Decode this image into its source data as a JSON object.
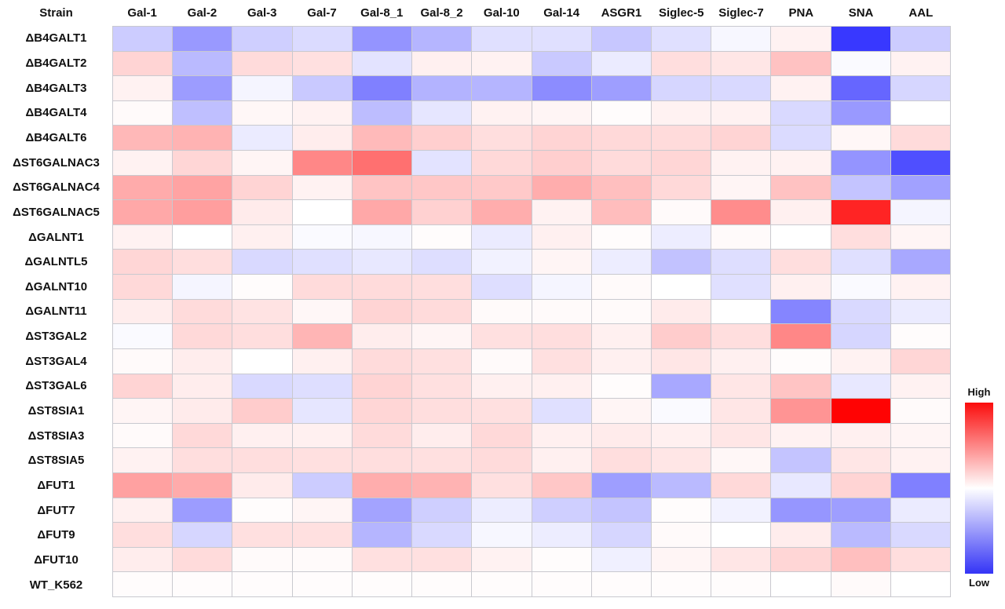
{
  "figure": {
    "strain_header": "Strain"
  },
  "chart_data": {
    "type": "heatmap",
    "title": "",
    "columns": [
      "Gal-1",
      "Gal-2",
      "Gal-3",
      "Gal-7",
      "Gal-8_1",
      "Gal-8_2",
      "Gal-10",
      "Gal-14",
      "ASGR1",
      "Siglec-5",
      "Siglec-7",
      "PNA",
      "SNA",
      "AAL"
    ],
    "rows": [
      "ΔB4GALT1",
      "ΔB4GALT2",
      "ΔB4GALT3",
      "ΔB4GALT4",
      "ΔB4GALT6",
      "ΔST6GALNAC3",
      "ΔST6GALNAC4",
      "ΔST6GALNAC5",
      "ΔGALNT1",
      "ΔGALNTL5",
      "ΔGALNT10",
      "ΔGALNT11",
      "ΔST3GAL2",
      "ΔST3GAL4",
      "ΔST3GAL6",
      "ΔST8SIA1",
      "ΔST8SIA3",
      "ΔST8SIA5",
      "ΔFUT1",
      "ΔFUT7",
      "ΔFUT9",
      "ΔFUT10",
      "WT_K562"
    ],
    "value_range": [
      -1,
      1
    ],
    "colormap": {
      "type": "blue-white-red",
      "low": "#3434f6",
      "mid": "#ffffff",
      "high": "#fb0d0d"
    },
    "legend": {
      "high_label": "High",
      "low_label": "Low"
    },
    "grid_line_color": "#c9c9cf",
    "values": [
      [
        -0.2,
        -0.4,
        -0.19,
        -0.14,
        -0.42,
        -0.29,
        -0.12,
        -0.12,
        -0.22,
        -0.12,
        -0.03,
        0.05,
        -0.78,
        -0.2
      ],
      [
        0.17,
        -0.27,
        0.14,
        0.12,
        -0.11,
        0.06,
        0.05,
        -0.21,
        -0.08,
        0.13,
        0.1,
        0.24,
        -0.02,
        0.05
      ],
      [
        0.05,
        -0.39,
        -0.04,
        -0.21,
        -0.5,
        -0.3,
        -0.29,
        -0.45,
        -0.38,
        -0.16,
        -0.15,
        0.05,
        -0.6,
        -0.16
      ],
      [
        0.02,
        -0.25,
        0.03,
        0.05,
        -0.26,
        -0.1,
        0.05,
        0.04,
        0.01,
        0.05,
        0.05,
        -0.15,
        -0.4,
        0.0
      ],
      [
        0.28,
        0.3,
        -0.08,
        0.07,
        0.27,
        0.19,
        0.13,
        0.17,
        0.15,
        0.14,
        0.17,
        -0.14,
        0.03,
        0.14
      ],
      [
        0.05,
        0.16,
        0.04,
        0.47,
        0.56,
        -0.11,
        0.15,
        0.19,
        0.14,
        0.16,
        0.05,
        0.05,
        -0.42,
        -0.69
      ],
      [
        0.33,
        0.36,
        0.17,
        0.05,
        0.23,
        0.22,
        0.21,
        0.32,
        0.25,
        0.15,
        0.04,
        0.24,
        -0.23,
        -0.37
      ],
      [
        0.34,
        0.38,
        0.08,
        0.0,
        0.34,
        0.18,
        0.32,
        0.05,
        0.26,
        0.02,
        0.45,
        0.06,
        0.86,
        -0.04
      ],
      [
        0.05,
        0.0,
        0.06,
        -0.02,
        -0.03,
        0.01,
        -0.08,
        0.06,
        0.01,
        -0.07,
        0.02,
        0.0,
        0.13,
        0.04
      ],
      [
        0.16,
        0.13,
        -0.15,
        -0.12,
        -0.09,
        -0.13,
        -0.05,
        0.04,
        -0.07,
        -0.24,
        -0.13,
        0.13,
        -0.12,
        -0.34
      ],
      [
        0.15,
        -0.04,
        0.01,
        0.14,
        0.14,
        0.13,
        -0.13,
        -0.04,
        0.02,
        0.0,
        -0.12,
        0.06,
        -0.02,
        0.05
      ],
      [
        0.07,
        0.14,
        0.11,
        0.03,
        0.17,
        0.14,
        0.02,
        0.02,
        0.02,
        0.08,
        0.0,
        -0.48,
        -0.15,
        -0.08
      ],
      [
        -0.02,
        0.15,
        0.13,
        0.29,
        0.07,
        0.04,
        0.12,
        0.13,
        0.06,
        0.2,
        0.13,
        0.47,
        -0.16,
        0.01
      ],
      [
        0.02,
        0.07,
        0.0,
        0.06,
        0.14,
        0.12,
        0.02,
        0.12,
        0.06,
        0.1,
        0.06,
        0.01,
        0.05,
        0.16
      ],
      [
        0.17,
        0.07,
        -0.15,
        -0.13,
        0.17,
        0.12,
        0.06,
        0.06,
        0.01,
        -0.34,
        0.1,
        0.23,
        -0.09,
        0.05
      ],
      [
        0.04,
        0.08,
        0.2,
        -0.1,
        0.16,
        0.13,
        0.12,
        -0.12,
        0.04,
        -0.02,
        0.1,
        0.42,
        0.99,
        0.02
      ],
      [
        0.02,
        0.15,
        0.06,
        0.06,
        0.14,
        0.07,
        0.15,
        0.06,
        0.08,
        0.06,
        0.1,
        0.05,
        0.06,
        0.04
      ],
      [
        0.05,
        0.13,
        0.13,
        0.12,
        0.13,
        0.12,
        0.14,
        0.06,
        0.13,
        0.1,
        0.03,
        -0.23,
        0.1,
        0.05
      ],
      [
        0.37,
        0.33,
        0.08,
        -0.2,
        0.32,
        0.3,
        0.12,
        0.22,
        -0.38,
        -0.27,
        0.15,
        -0.09,
        0.17,
        -0.5
      ],
      [
        0.06,
        -0.39,
        0.01,
        0.04,
        -0.36,
        -0.19,
        -0.07,
        -0.19,
        -0.23,
        0.01,
        -0.05,
        -0.41,
        -0.38,
        -0.08
      ],
      [
        0.13,
        -0.16,
        0.12,
        0.12,
        -0.29,
        -0.15,
        -0.03,
        -0.07,
        -0.16,
        0.02,
        0.0,
        0.07,
        -0.27,
        -0.15
      ],
      [
        0.07,
        0.14,
        0.02,
        0.02,
        0.12,
        0.12,
        0.05,
        0.01,
        -0.06,
        0.04,
        0.1,
        0.16,
        0.25,
        0.13
      ],
      [
        0.01,
        0.01,
        0.01,
        0.01,
        0.01,
        0.01,
        0.01,
        0.01,
        0.01,
        0.01,
        0.01,
        0.0,
        0.02,
        0.0
      ]
    ]
  }
}
